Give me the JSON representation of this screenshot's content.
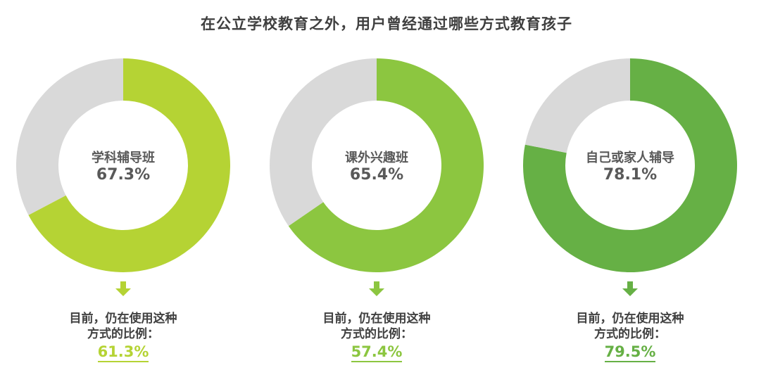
{
  "chart_data": {
    "type": "pie",
    "title": "在公立学校教育之外，用户曾经通过哪些方式教育孩子",
    "rest_color": "#d9d9d9",
    "items": [
      {
        "label": "学科辅导班",
        "value": 67.3,
        "value_text": "67.3%",
        "color": "#b5d334",
        "current_label_line1": "目前，仍在使用这种",
        "current_label_line2": "方式的比例：",
        "current_value": 61.3,
        "current_value_text": "61.3%"
      },
      {
        "label": "课外兴趣班",
        "value": 65.4,
        "value_text": "65.4%",
        "color": "#8cc640",
        "current_label_line1": "目前，仍在使用这种",
        "current_label_line2": "方式的比例：",
        "current_value": 57.4,
        "current_value_text": "57.4%"
      },
      {
        "label": "自己或家人辅导",
        "value": 78.1,
        "value_text": "78.1%",
        "color": "#66b045",
        "current_label_line1": "目前，仍在使用这种",
        "current_label_line2": "方式的比例：",
        "current_value": 79.5,
        "current_value_text": "79.5%"
      }
    ]
  }
}
